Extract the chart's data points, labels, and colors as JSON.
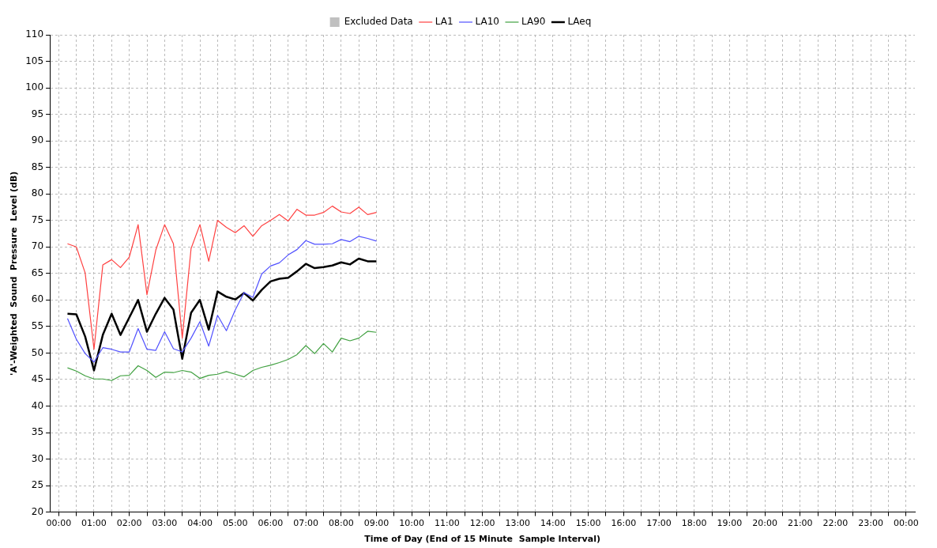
{
  "chart_data": {
    "type": "line",
    "xlabel": "Time of Day (End of 15 Minute  Sample Interval)",
    "ylabel": "'A'-Weighted  Sound  Pressure  Level (dB)",
    "x": [
      0.25,
      0.5,
      0.75,
      1,
      1.25,
      1.5,
      1.75,
      2,
      2.25,
      2.5,
      2.75,
      3,
      3.25,
      3.5,
      3.75,
      4,
      4.25,
      4.5,
      4.75,
      5,
      5.25,
      5.5,
      5.75,
      6,
      6.25,
      6.5,
      6.75,
      7,
      7.25,
      7.5,
      7.75,
      8,
      8.25,
      8.5,
      8.75,
      9
    ],
    "series": [
      {
        "name": "Excluded Data",
        "type": "bar",
        "color": "#c0c0c0",
        "values": [
          null,
          null,
          null,
          null,
          null,
          null,
          null,
          null,
          null,
          null,
          null,
          null,
          null,
          null,
          null,
          null,
          null,
          null,
          null,
          null,
          null,
          null,
          null,
          null,
          null,
          null,
          null,
          null,
          null,
          null,
          null,
          null,
          null,
          null,
          null,
          null
        ]
      },
      {
        "name": "LA1",
        "color": "#ff4040",
        "values": [
          70.6,
          70.0,
          65.1,
          50.7,
          66.6,
          67.6,
          66.1,
          68.1,
          74.2,
          61.0,
          69.4,
          74.2,
          70.6,
          52.8,
          69.7,
          74.2,
          67.3,
          75.0,
          73.7,
          72.7,
          74.0,
          72.0,
          74.0,
          75.0,
          76.1,
          74.9,
          77.1,
          76.0,
          76.0,
          76.5,
          77.7,
          76.6,
          76.3,
          77.5,
          76.1,
          76.5
        ]
      },
      {
        "name": "LA10",
        "color": "#5050ff",
        "values": [
          56.5,
          52.6,
          49.9,
          48.3,
          51.0,
          50.7,
          50.2,
          50.2,
          54.6,
          50.7,
          50.5,
          54.0,
          50.8,
          50.2,
          52.8,
          55.9,
          51.3,
          57.1,
          54.2,
          58.1,
          61.4,
          60.5,
          64.9,
          66.4,
          67.0,
          68.5,
          69.5,
          71.2,
          70.5,
          70.5,
          70.6,
          71.4,
          71.0,
          72.0,
          71.6,
          71.1
        ]
      },
      {
        "name": "LA90",
        "color": "#40a040",
        "values": [
          47.2,
          46.6,
          45.7,
          45.1,
          45.1,
          44.8,
          45.7,
          45.8,
          47.6,
          46.7,
          45.4,
          46.4,
          46.3,
          46.7,
          46.4,
          45.2,
          45.8,
          46.0,
          46.5,
          46.0,
          45.5,
          46.7,
          47.3,
          47.7,
          48.2,
          48.8,
          49.7,
          51.4,
          49.9,
          51.8,
          50.2,
          52.8,
          52.3,
          52.8,
          54.1,
          53.9
        ]
      },
      {
        "name": "LAeq",
        "color": "#000000",
        "values": [
          57.4,
          57.3,
          53.1,
          46.7,
          53.4,
          57.4,
          53.4,
          56.7,
          60.0,
          54.0,
          57.4,
          60.4,
          58.2,
          48.9,
          57.6,
          60.0,
          54.4,
          61.6,
          60.6,
          60.1,
          61.3,
          59.9,
          61.9,
          63.5,
          64.0,
          64.2,
          65.4,
          66.8,
          66.0,
          66.2,
          66.5,
          67.1,
          66.7,
          67.8,
          67.3,
          67.3
        ]
      }
    ],
    "xlim": [
      0,
      24
    ],
    "xticks": [
      {
        "value": 0,
        "label": "00:00"
      },
      {
        "value": 0.5,
        "label": null
      },
      {
        "value": 1,
        "label": "01:00"
      },
      {
        "value": 1.5,
        "label": null
      },
      {
        "value": 2,
        "label": "02:00"
      },
      {
        "value": 2.5,
        "label": null
      },
      {
        "value": 3,
        "label": "03:00"
      },
      {
        "value": 3.5,
        "label": null
      },
      {
        "value": 4,
        "label": "04:00"
      },
      {
        "value": 4.5,
        "label": null
      },
      {
        "value": 5,
        "label": "05:00"
      },
      {
        "value": 5.5,
        "label": null
      },
      {
        "value": 6,
        "label": "06:00"
      },
      {
        "value": 6.5,
        "label": null
      },
      {
        "value": 7,
        "label": "07:00"
      },
      {
        "value": 7.5,
        "label": null
      },
      {
        "value": 8,
        "label": "08:00"
      },
      {
        "value": 8.5,
        "label": null
      },
      {
        "value": 9,
        "label": "09:00"
      },
      {
        "value": 9.5,
        "label": null
      },
      {
        "value": 10,
        "label": "10:00"
      },
      {
        "value": 10.5,
        "label": null
      },
      {
        "value": 11,
        "label": "11:00"
      },
      {
        "value": 11.5,
        "label": null
      },
      {
        "value": 12,
        "label": "12:00"
      },
      {
        "value": 12.5,
        "label": null
      },
      {
        "value": 13,
        "label": "13:00"
      },
      {
        "value": 13.5,
        "label": null
      },
      {
        "value": 14,
        "label": "14:00"
      },
      {
        "value": 14.5,
        "label": null
      },
      {
        "value": 15,
        "label": "15:00"
      },
      {
        "value": 15.5,
        "label": null
      },
      {
        "value": 16,
        "label": "16:00"
      },
      {
        "value": 16.5,
        "label": null
      },
      {
        "value": 17,
        "label": "17:00"
      },
      {
        "value": 17.5,
        "label": null
      },
      {
        "value": 18,
        "label": "18:00"
      },
      {
        "value": 18.5,
        "label": null
      },
      {
        "value": 19,
        "label": "19:00"
      },
      {
        "value": 19.5,
        "label": null
      },
      {
        "value": 20,
        "label": "20:00"
      },
      {
        "value": 20.5,
        "label": null
      },
      {
        "value": 21,
        "label": "21:00"
      },
      {
        "value": 21.5,
        "label": null
      },
      {
        "value": 22,
        "label": "22:00"
      },
      {
        "value": 22.5,
        "label": null
      },
      {
        "value": 23,
        "label": "23:00"
      },
      {
        "value": 23.5,
        "label": null
      },
      {
        "value": 24,
        "label": "00:00"
      }
    ],
    "ylim": [
      20,
      110
    ],
    "yticks": [
      20,
      25,
      30,
      35,
      40,
      45,
      50,
      55,
      60,
      65,
      70,
      75,
      80,
      85,
      90,
      95,
      100,
      105,
      110
    ],
    "grid": true,
    "legend": "top",
    "marker": "none",
    "line_style": "solid"
  }
}
